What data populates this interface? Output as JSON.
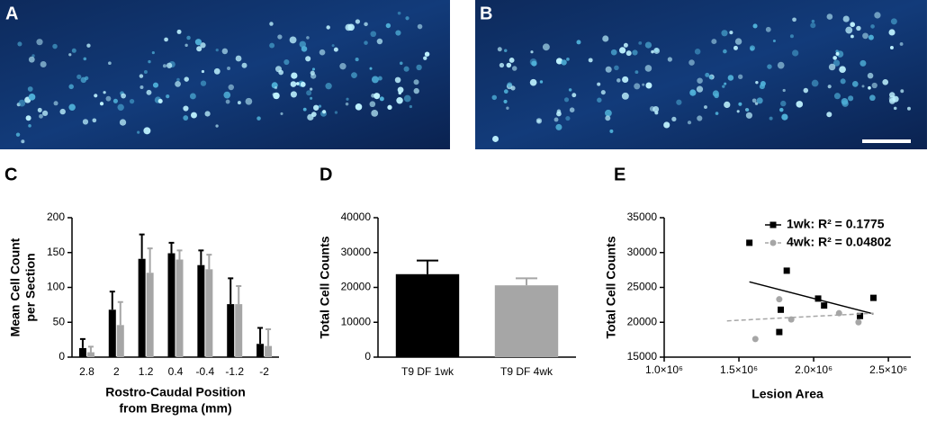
{
  "images": [
    {
      "label": "A"
    },
    {
      "label": "B"
    }
  ],
  "chart_data": [
    {
      "type": "bar",
      "label": "C",
      "y_label": [
        "Mean Cell Count",
        "per Section"
      ],
      "x_label": [
        "Rostro-Caudal Position",
        "from Bregma (mm)"
      ],
      "categories": [
        "2.8",
        "2",
        "1.2",
        "0.4",
        "-0.4",
        "-1.2",
        "-2"
      ],
      "series": [
        {
          "color": "#000000",
          "values": [
            13,
            68,
            141,
            149,
            132,
            76,
            19
          ],
          "errors": [
            13,
            26,
            35,
            15,
            21,
            37,
            23
          ]
        },
        {
          "color": "#a6a6a6",
          "values": [
            7,
            46,
            121,
            140,
            126,
            76,
            16
          ],
          "errors": [
            8,
            33,
            35,
            13,
            21,
            26,
            24
          ]
        }
      ],
      "ylim": [
        0,
        200
      ],
      "yticks": [
        0,
        50,
        100,
        150,
        200
      ]
    },
    {
      "type": "bar",
      "label": "D",
      "y_label": [
        "Total Cell Counts"
      ],
      "categories": [
        "T9 DF 1wk",
        "T9 DF 4wk"
      ],
      "series": [
        {
          "colors": [
            "#000000",
            "#a6a6a6"
          ],
          "values": [
            23800,
            20600
          ],
          "errors": [
            3900,
            2000
          ]
        }
      ],
      "ylim": [
        0,
        40000
      ],
      "yticks": [
        0,
        10000,
        20000,
        30000,
        40000
      ]
    },
    {
      "type": "scatter",
      "label": "E",
      "y_label": [
        "Total Cell Counts"
      ],
      "x_label": [
        "Lesion Area"
      ],
      "series": [
        {
          "name": "1wk: R² = 0.1775",
          "color": "#000000",
          "marker": "square",
          "x": [
            1570000,
            1820000,
            1780000,
            1770000,
            2030000,
            2070000,
            2310000,
            2400000
          ],
          "values": [
            31400,
            27400,
            21800,
            18600,
            23400,
            22400,
            20900,
            23500
          ],
          "trendline": {
            "x": [
              1570000,
              2400000
            ],
            "y": [
              25800,
              21200
            ],
            "dashed": false
          }
        },
        {
          "name": "4wk: R² = 0.04802",
          "color": "#a6a6a6",
          "marker": "circle",
          "x": [
            1610000,
            1770000,
            1850000,
            2170000,
            2300000
          ],
          "values": [
            17600,
            23300,
            20400,
            21300,
            20000
          ],
          "trendline": {
            "x": [
              1420000,
              2400000
            ],
            "y": [
              20200,
              21300
            ],
            "dashed": true
          }
        }
      ],
      "xlim": [
        1000000,
        2650000
      ],
      "xticks": [
        {
          "value": 1000000,
          "label": "1.0×10⁶"
        },
        {
          "value": 1500000,
          "label": "1.5×10⁶"
        },
        {
          "value": 2000000,
          "label": "2.0×10⁶"
        },
        {
          "value": 2500000,
          "label": "2.5×10⁶"
        }
      ],
      "ylim": [
        15000,
        35000
      ],
      "yticks": [
        15000,
        20000,
        25000,
        30000,
        35000
      ],
      "legend": "top-right"
    }
  ]
}
